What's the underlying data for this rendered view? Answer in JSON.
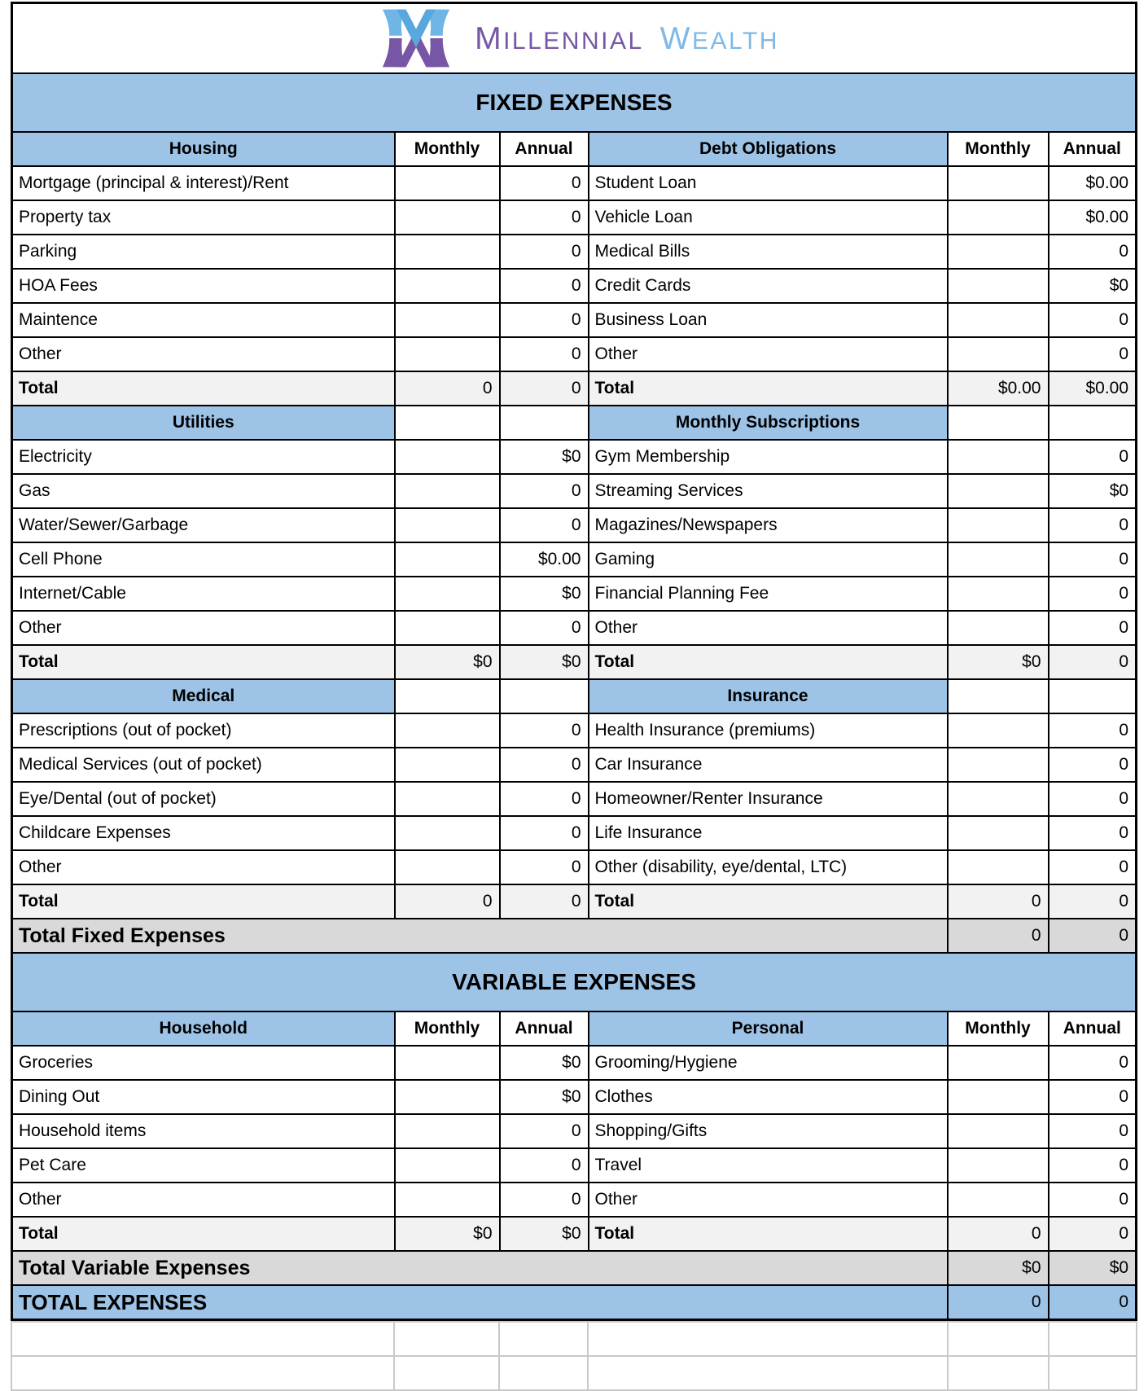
{
  "brand": {
    "logo_icon": "m-w-monogram-icon",
    "primary": "MILLENNIAL",
    "secondary": "WEALTH"
  },
  "colors": {
    "header_blue": "#9DC3E6",
    "section_total_gray": "#F2F2F2",
    "grand_total_gray": "#D9D9D9",
    "logo_purple": "#7757A5",
    "logo_blue": "#7FB9E6",
    "border_black": "#000000",
    "empty_grid_gray": "#C9C9C9"
  },
  "sheet": {
    "col_headers": {
      "monthly": "Monthly",
      "annual": "Annual"
    },
    "fixed": {
      "banner": "FIXED EXPENSES",
      "left": [
        {
          "name": "Housing",
          "items": [
            {
              "label": "Mortgage (principal & interest)/Rent",
              "monthly": "",
              "annual": "0"
            },
            {
              "label": "Property tax",
              "monthly": "",
              "annual": "0"
            },
            {
              "label": "Parking",
              "monthly": "",
              "annual": "0"
            },
            {
              "label": "HOA Fees",
              "monthly": "",
              "annual": "0"
            },
            {
              "label": "Maintence",
              "monthly": "",
              "annual": "0"
            },
            {
              "label": "Other",
              "monthly": "",
              "annual": "0"
            }
          ],
          "total": {
            "label": "Total",
            "monthly": "0",
            "annual": "0"
          }
        },
        {
          "name": "Utilities",
          "items": [
            {
              "label": "Electricity",
              "monthly": "",
              "annual": "$0"
            },
            {
              "label": "Gas",
              "monthly": "",
              "annual": "0"
            },
            {
              "label": "Water/Sewer/Garbage",
              "monthly": "",
              "annual": "0"
            },
            {
              "label": "Cell Phone",
              "monthly": "",
              "annual": "$0.00"
            },
            {
              "label": "Internet/Cable",
              "monthly": "",
              "annual": "$0"
            },
            {
              "label": "Other",
              "monthly": "",
              "annual": "0"
            }
          ],
          "total": {
            "label": "Total",
            "monthly": "$0",
            "annual": "$0"
          }
        },
        {
          "name": "Medical",
          "items": [
            {
              "label": "Prescriptions (out of pocket)",
              "monthly": "",
              "annual": "0"
            },
            {
              "label": "Medical Services (out of pocket)",
              "monthly": "",
              "annual": "0"
            },
            {
              "label": "Eye/Dental (out of pocket)",
              "monthly": "",
              "annual": "0"
            },
            {
              "label": "Childcare Expenses",
              "monthly": "",
              "annual": "0"
            },
            {
              "label": "Other",
              "monthly": "",
              "annual": "0"
            }
          ],
          "total": {
            "label": "Total",
            "monthly": "0",
            "annual": "0"
          }
        }
      ],
      "right": [
        {
          "name": "Debt Obligations",
          "items": [
            {
              "label": "Student Loan",
              "monthly": "",
              "annual": "$0.00"
            },
            {
              "label": "Vehicle Loan",
              "monthly": "",
              "annual": "$0.00"
            },
            {
              "label": "Medical Bills",
              "monthly": "",
              "annual": "0"
            },
            {
              "label": "Credit Cards",
              "monthly": "",
              "annual": "$0"
            },
            {
              "label": "Business Loan",
              "monthly": "",
              "annual": "0"
            },
            {
              "label": "Other",
              "monthly": "",
              "annual": "0"
            }
          ],
          "total": {
            "label": "Total",
            "monthly": "$0.00",
            "annual": "$0.00"
          }
        },
        {
          "name": "Monthly Subscriptions",
          "items": [
            {
              "label": "Gym Membership",
              "monthly": "",
              "annual": "0"
            },
            {
              "label": "Streaming Services",
              "monthly": "",
              "annual": "$0"
            },
            {
              "label": "Magazines/Newspapers",
              "monthly": "",
              "annual": "0"
            },
            {
              "label": "Gaming",
              "monthly": "",
              "annual": "0"
            },
            {
              "label": "Financial Planning Fee",
              "monthly": "",
              "annual": "0"
            },
            {
              "label": "Other",
              "monthly": "",
              "annual": "0"
            }
          ],
          "total": {
            "label": "Total",
            "monthly": "$0",
            "annual": "0"
          }
        },
        {
          "name": "Insurance",
          "items": [
            {
              "label": "Health Insurance (premiums)",
              "monthly": "",
              "annual": "0"
            },
            {
              "label": "Car Insurance",
              "monthly": "",
              "annual": "0"
            },
            {
              "label": "Homeowner/Renter Insurance",
              "monthly": "",
              "annual": "0"
            },
            {
              "label": "Life Insurance",
              "monthly": "",
              "annual": "0"
            },
            {
              "label": "Other (disability, eye/dental, LTC)",
              "monthly": "",
              "annual": "0"
            }
          ],
          "total": {
            "label": "Total",
            "monthly": "0",
            "annual": "0"
          }
        }
      ],
      "grand_total": {
        "label": "Total Fixed Expenses",
        "monthly": "0",
        "annual": "0"
      }
    },
    "variable": {
      "banner": "VARIABLE EXPENSES",
      "left": [
        {
          "name": "Household",
          "items": [
            {
              "label": "Groceries",
              "monthly": "",
              "annual": "$0"
            },
            {
              "label": "Dining Out",
              "monthly": "",
              "annual": "$0"
            },
            {
              "label": "Household items",
              "monthly": "",
              "annual": "0"
            },
            {
              "label": "Pet Care",
              "monthly": "",
              "annual": "0"
            },
            {
              "label": "Other",
              "monthly": "",
              "annual": "0"
            }
          ],
          "total": {
            "label": "Total",
            "monthly": "$0",
            "annual": "$0"
          }
        }
      ],
      "right": [
        {
          "name": "Personal",
          "items": [
            {
              "label": "Grooming/Hygiene",
              "monthly": "",
              "annual": "0"
            },
            {
              "label": "Clothes",
              "monthly": "",
              "annual": "0"
            },
            {
              "label": "Shopping/Gifts",
              "monthly": "",
              "annual": "0"
            },
            {
              "label": "Travel",
              "monthly": "",
              "annual": "0"
            },
            {
              "label": "Other",
              "monthly": "",
              "annual": "0"
            }
          ],
          "total": {
            "label": "Total",
            "monthly": "0",
            "annual": "0"
          }
        }
      ],
      "grand_total": {
        "label": "Total Variable Expenses",
        "monthly": "$0",
        "annual": "$0"
      }
    },
    "grand_total_row": {
      "label": "TOTAL EXPENSES",
      "monthly": "0",
      "annual": "0"
    },
    "empty_rows": 2
  }
}
